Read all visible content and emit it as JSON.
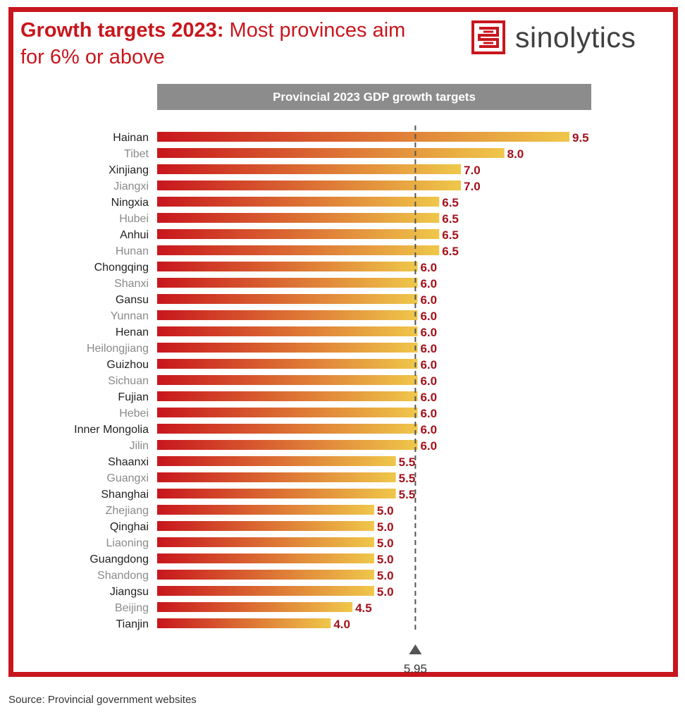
{
  "header": {
    "title_bold": "Growth targets 2023:",
    "title_rest": " Most provinces aim for 6% or above",
    "brand": "sinolytics",
    "source": "Source: Provincial government websites"
  },
  "colors": {
    "frame": "#c8161d",
    "bar_start": "#c8161d",
    "bar_end": "#efc74a",
    "value_label": "#a3111b",
    "header_bg": "#8c8c8c",
    "label_dark": "#222222",
    "label_light": "#8a8a8a",
    "reference_line": "#555555"
  },
  "chart_data": {
    "type": "bar",
    "orientation": "horizontal",
    "title": "Provincial 2023 GDP growth targets",
    "categories": [
      "Hainan",
      "Tibet",
      "Xinjiang",
      "Jiangxi",
      "Ningxia",
      "Hubei",
      "Anhui",
      "Hunan",
      "Chongqing",
      "Shanxi",
      "Gansu",
      "Yunnan",
      "Henan",
      "Heilongjiang",
      "Guizhou",
      "Sichuan",
      "Fujian",
      "Hebei",
      "Inner Mongolia",
      "Jilin",
      "Shaanxi",
      "Guangxi",
      "Shanghai",
      "Zhejiang",
      "Qinghai",
      "Liaoning",
      "Guangdong",
      "Shandong",
      "Jiangsu",
      "Beijing",
      "Tianjin"
    ],
    "values": [
      9.5,
      8.0,
      7.0,
      7.0,
      6.5,
      6.5,
      6.5,
      6.5,
      6.0,
      6.0,
      6.0,
      6.0,
      6.0,
      6.0,
      6.0,
      6.0,
      6.0,
      6.0,
      6.0,
      6.0,
      5.5,
      5.5,
      5.5,
      5.0,
      5.0,
      5.0,
      5.0,
      5.0,
      5.0,
      4.5,
      4.0
    ],
    "value_labels": [
      "9.5",
      "8.0",
      "7.0",
      "7.0",
      "6.5",
      "6.5",
      "6.5",
      "6.5",
      "6.0",
      "6.0",
      "6.0",
      "6.0",
      "6.0",
      "6.0",
      "6.0",
      "6.0",
      "6.0",
      "6.0",
      "6.0",
      "6.0",
      "5.5",
      "5.5",
      "5.5",
      "5.0",
      "5.0",
      "5.0",
      "5.0",
      "5.0",
      "5.0",
      "4.5",
      "4.0"
    ],
    "reference": {
      "value": 5.95,
      "label": "5.95",
      "style": "dashed"
    },
    "xlim": [
      0,
      9.5
    ],
    "grid": false,
    "legend": "none"
  }
}
